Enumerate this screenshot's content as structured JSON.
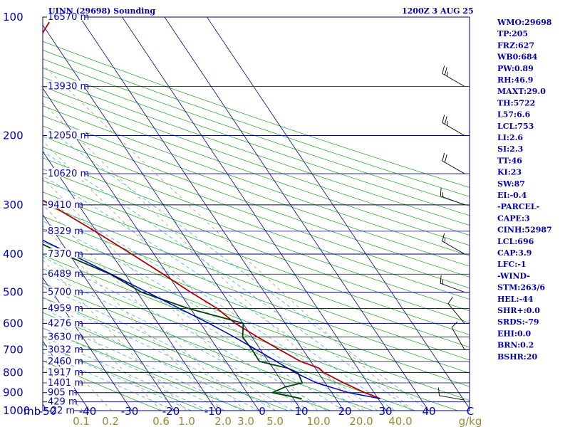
{
  "header": {
    "station": "UINN (29698) Sounding",
    "time": "1200Z  3 AUG 25"
  },
  "indices": [
    "WMO:29698",
    "TP:205",
    "FRZ:627",
    "WB0:684",
    "PW:0.89",
    "RH:46.9",
    "MAXT:29.0",
    "TH:5722",
    "L57:6.6",
    "LCL:753",
    "LI:2.6",
    "SI:2.3",
    "TT:46",
    "KI:23",
    "SW:87",
    "EI:-0.4",
    "-PARCEL-",
    "CAPE:3",
    "CINH:52987",
    "LCL:696",
    "CAP:3.9",
    "LFC:-1",
    "-WIND-",
    "STM:263/6",
    "HEL:-44",
    "SHR+:0.0",
    "SRDS:-79",
    "EHI:0.0",
    "BRN:0.2",
    "BSHR:20"
  ],
  "colors": {
    "frame": "#000060",
    "isobar": "#00007a",
    "isotherm": "#1c1c88",
    "dry_adiabat": "#30b030",
    "moist_adiabat": "#45aee0",
    "mixing_ratio": "#a49c6c",
    "temperature": "#b00000",
    "dewpoint": "#004000",
    "parcel": "#0000b8",
    "label": "#0000b0",
    "mix_label": "#9a8a3a",
    "wind": "#000000"
  },
  "chart_data": {
    "type": "line",
    "title": "UINN (29698) Sounding",
    "plot_kind": "skew-T log-P",
    "y_axis": {
      "scale": "log",
      "range": [
        1000,
        100
      ],
      "units": "mb"
    },
    "x_axis": {
      "range": [
        -50,
        50
      ]
    },
    "pressure_ticks": [
      "100",
      "200",
      "300",
      "400",
      "500",
      "600",
      "700",
      "800",
      "900",
      "1000"
    ],
    "pressure_unit_label": "mb",
    "temperature_ticks": [
      "-50",
      "-40",
      "-30",
      "-20",
      "-10",
      "0",
      "10",
      "20",
      "30",
      "40",
      "C"
    ],
    "mixing_ratio_ticks": [
      "0.1",
      "0.2",
      "0.6",
      "1.0",
      "2.0",
      "3.0",
      "5.0",
      "10.0",
      "20.0",
      "40.0",
      "g/kg"
    ],
    "height_labels": [
      {
        "p": 100,
        "h": "16570 m"
      },
      {
        "p": 150,
        "h": "13930 m"
      },
      {
        "p": 200,
        "h": "12050 m"
      },
      {
        "p": 250,
        "h": "10620 m"
      },
      {
        "p": 300,
        "h": "9410 m"
      },
      {
        "p": 350,
        "h": "8329 m"
      },
      {
        "p": 400,
        "h": "7370 m"
      },
      {
        "p": 450,
        "h": "6489 m"
      },
      {
        "p": 500,
        "h": "5700 m"
      },
      {
        "p": 550,
        "h": "4959 m"
      },
      {
        "p": 600,
        "h": "4276 m"
      },
      {
        "p": 650,
        "h": "3630 m"
      },
      {
        "p": 700,
        "h": "3032 m"
      },
      {
        "p": 750,
        "h": "2460 m"
      },
      {
        "p": 800,
        "h": "1917 m"
      },
      {
        "p": 850,
        "h": "1401 m"
      },
      {
        "p": 900,
        "h": "905 m"
      },
      {
        "p": 950,
        "h": "429 m"
      },
      {
        "p": 1000,
        "h": "-22 m"
      }
    ],
    "series": [
      {
        "kind": "temperature",
        "points": [
          [
            932,
            30.5
          ],
          [
            900,
            27.8
          ],
          [
            850,
            24.4
          ],
          [
            800,
            21.3
          ],
          [
            780,
            20.9
          ],
          [
            750,
            17.6
          ],
          [
            700,
            14.5
          ],
          [
            650,
            11.3
          ],
          [
            600,
            8.2
          ],
          [
            550,
            6.3
          ],
          [
            500,
            2.6
          ],
          [
            450,
            -1.0
          ],
          [
            400,
            -5.3
          ],
          [
            350,
            -10.3
          ],
          [
            300,
            -16.6
          ],
          [
            250,
            -24.5
          ],
          [
            230,
            -27.4
          ],
          [
            205,
            -34.0
          ],
          [
            200,
            -32.5
          ],
          [
            180,
            -18.5
          ],
          [
            170,
            -13.0
          ],
          [
            150,
            -5.0
          ],
          [
            125,
            2.0
          ],
          [
            103,
            12.0
          ]
        ]
      },
      {
        "kind": "dewpoint",
        "points": [
          [
            932,
            12.0
          ],
          [
            900,
            6.0
          ],
          [
            870,
            10.0
          ],
          [
            850,
            14.6
          ],
          [
            800,
            15.2
          ],
          [
            780,
            13.5
          ],
          [
            750,
            7.9
          ],
          [
            700,
            8.0
          ],
          [
            650,
            7.8
          ],
          [
            600,
            10.1
          ],
          [
            550,
            -0.5
          ],
          [
            500,
            -9.0
          ],
          [
            450,
            -13.5
          ],
          [
            400,
            -21.5
          ],
          [
            350,
            -29.0
          ],
          [
            300,
            -40.0
          ],
          [
            250,
            -50.0
          ],
          [
            210,
            -52.0
          ],
          [
            200,
            -50.0
          ],
          [
            185,
            -40.0
          ],
          [
            170,
            -32.0
          ],
          [
            150,
            -21.0
          ],
          [
            103,
            6.0
          ]
        ]
      },
      {
        "kind": "parcel",
        "points": [
          [
            932,
            30.5
          ],
          [
            900,
            24.0
          ],
          [
            850,
            18.0
          ],
          [
            800,
            14.5
          ],
          [
            750,
            11.9
          ],
          [
            700,
            9.0
          ],
          [
            650,
            5.8
          ],
          [
            600,
            2.0
          ],
          [
            550,
            -2.6
          ],
          [
            500,
            -7.6
          ],
          [
            450,
            -13.3
          ],
          [
            400,
            -19.6
          ],
          [
            350,
            -26.9
          ],
          [
            300,
            -35.2
          ],
          [
            250,
            -45.5
          ],
          [
            200,
            -58.2
          ],
          [
            150,
            -73.0
          ],
          [
            103,
            -86.0
          ]
        ]
      }
    ],
    "winds": [
      {
        "p": 940,
        "dir": 280,
        "spd": 10
      },
      {
        "p": 700,
        "dir": 330,
        "spd": 10
      },
      {
        "p": 600,
        "dir": 320,
        "spd": 10
      },
      {
        "p": 500,
        "dir": 290,
        "spd": 15
      },
      {
        "p": 400,
        "dir": 300,
        "spd": 15
      },
      {
        "p": 300,
        "dir": 290,
        "spd": 15
      },
      {
        "p": 250,
        "dir": 300,
        "spd": 20
      },
      {
        "p": 200,
        "dir": 300,
        "spd": 25
      },
      {
        "p": 150,
        "dir": 300,
        "spd": 25
      },
      {
        "p": 100,
        "dir": 290,
        "spd": 20
      }
    ]
  }
}
